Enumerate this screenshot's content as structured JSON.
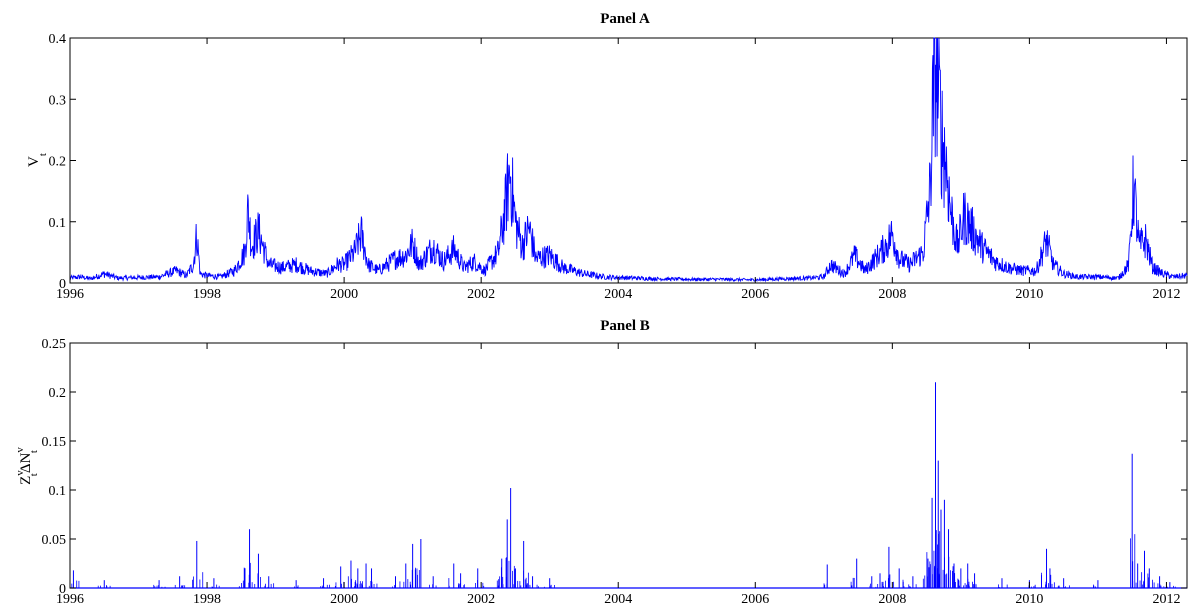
{
  "chart_data": [
    {
      "type": "line",
      "title": "Panel A",
      "ylabel": "V",
      "ylabel_subscript": "t",
      "xlim": [
        1996,
        2012.3
      ],
      "ylim": [
        0,
        0.4
      ],
      "xticks": [
        "1996",
        "1998",
        "2000",
        "2002",
        "2004",
        "2006",
        "2008",
        "2010",
        "2012"
      ],
      "yticks": [
        "0",
        "0.1",
        "0.2",
        "0.3",
        "0.4"
      ],
      "line_color": "#0000ff",
      "grid": false,
      "series": [
        {
          "x": [
            1996.0,
            1996.15,
            1996.3,
            1996.5,
            1996.7,
            1997.0,
            1997.3,
            1997.55,
            1997.7,
            1997.8,
            1997.85,
            1997.9,
            1998.0,
            1998.2,
            1998.4,
            1998.55,
            1998.6,
            1998.65,
            1998.75,
            1998.9,
            1999.1,
            1999.3,
            1999.5,
            1999.75,
            1999.9,
            2000.0,
            2000.15,
            2000.25,
            2000.35,
            2000.5,
            2000.75,
            2000.9,
            2001.0,
            2001.1,
            2001.3,
            2001.45,
            2001.6,
            2001.75,
            2001.9,
            2002.05,
            2002.25,
            2002.35,
            2002.42,
            2002.5,
            2002.6,
            2002.7,
            2002.8,
            2003.0,
            2003.2,
            2003.5,
            2003.8,
            2004.0,
            2004.5,
            2005.0,
            2005.5,
            2006.0,
            2006.4,
            2006.8,
            2007.0,
            2007.1,
            2007.3,
            2007.45,
            2007.6,
            2007.75,
            2007.9,
            2008.0,
            2008.1,
            2008.25,
            2008.45,
            2008.55,
            2008.62,
            2008.68,
            2008.72,
            2008.78,
            2008.85,
            2008.95,
            2009.05,
            2009.15,
            2009.3,
            2009.5,
            2009.7,
            2009.9,
            2010.1,
            2010.25,
            2010.35,
            2010.5,
            2010.7,
            2011.0,
            2011.3,
            2011.45,
            2011.52,
            2011.6,
            2011.7,
            2011.8,
            2011.95,
            2012.1,
            2012.3
          ],
          "y": [
            0.008,
            0.01,
            0.007,
            0.015,
            0.008,
            0.009,
            0.01,
            0.02,
            0.012,
            0.03,
            0.08,
            0.015,
            0.012,
            0.01,
            0.02,
            0.05,
            0.12,
            0.06,
            0.085,
            0.03,
            0.025,
            0.03,
            0.02,
            0.015,
            0.03,
            0.03,
            0.05,
            0.08,
            0.03,
            0.02,
            0.04,
            0.045,
            0.065,
            0.03,
            0.06,
            0.035,
            0.055,
            0.025,
            0.035,
            0.02,
            0.05,
            0.12,
            0.185,
            0.1,
            0.06,
            0.09,
            0.04,
            0.045,
            0.025,
            0.015,
            0.01,
            0.009,
            0.007,
            0.006,
            0.006,
            0.005,
            0.007,
            0.008,
            0.01,
            0.03,
            0.015,
            0.045,
            0.02,
            0.04,
            0.06,
            0.08,
            0.04,
            0.03,
            0.05,
            0.15,
            0.37,
            0.3,
            0.24,
            0.2,
            0.12,
            0.06,
            0.11,
            0.09,
            0.06,
            0.035,
            0.025,
            0.02,
            0.02,
            0.07,
            0.03,
            0.015,
            0.01,
            0.01,
            0.008,
            0.03,
            0.16,
            0.06,
            0.07,
            0.025,
            0.015,
            0.01,
            0.012
          ]
        }
      ]
    },
    {
      "type": "line",
      "title": "Panel B",
      "ylabel": "Z",
      "ylabel_subscript": "t",
      "ylabel_superscript": "v",
      "ylabel_mid": "ΔN",
      "ylabel_mid_subscript": "t",
      "ylabel_mid_superscript": "v",
      "xlim": [
        1996,
        2012.3
      ],
      "ylim": [
        0,
        0.25
      ],
      "xticks": [
        "1996",
        "1998",
        "2000",
        "2002",
        "2004",
        "2006",
        "2008",
        "2010",
        "2012"
      ],
      "yticks": [
        "0",
        "0.05",
        "0.1",
        "0.15",
        "0.2",
        "0.25"
      ],
      "line_color": "#0000ff",
      "grid": false,
      "spikes": [
        {
          "x": 1996.05,
          "y": 0.018
        },
        {
          "x": 1996.5,
          "y": 0.008
        },
        {
          "x": 1997.3,
          "y": 0.008
        },
        {
          "x": 1997.6,
          "y": 0.012
        },
        {
          "x": 1997.85,
          "y": 0.048
        },
        {
          "x": 1998.1,
          "y": 0.01
        },
        {
          "x": 1998.55,
          "y": 0.02
        },
        {
          "x": 1998.62,
          "y": 0.06
        },
        {
          "x": 1998.75,
          "y": 0.035
        },
        {
          "x": 1998.9,
          "y": 0.012
        },
        {
          "x": 1999.3,
          "y": 0.008
        },
        {
          "x": 1999.7,
          "y": 0.01
        },
        {
          "x": 1999.95,
          "y": 0.022
        },
        {
          "x": 2000.1,
          "y": 0.028
        },
        {
          "x": 2000.2,
          "y": 0.02
        },
        {
          "x": 2000.32,
          "y": 0.025
        },
        {
          "x": 2000.4,
          "y": 0.02
        },
        {
          "x": 2000.75,
          "y": 0.012
        },
        {
          "x": 2000.9,
          "y": 0.025
        },
        {
          "x": 2001.0,
          "y": 0.045
        },
        {
          "x": 2001.12,
          "y": 0.05
        },
        {
          "x": 2001.3,
          "y": 0.012
        },
        {
          "x": 2001.6,
          "y": 0.025
        },
        {
          "x": 2001.7,
          "y": 0.015
        },
        {
          "x": 2001.95,
          "y": 0.02
        },
        {
          "x": 2002.3,
          "y": 0.03
        },
        {
          "x": 2002.38,
          "y": 0.07
        },
        {
          "x": 2002.43,
          "y": 0.102
        },
        {
          "x": 2002.5,
          "y": 0.02
        },
        {
          "x": 2002.62,
          "y": 0.048
        },
        {
          "x": 2002.75,
          "y": 0.012
        },
        {
          "x": 2003.0,
          "y": 0.01
        },
        {
          "x": 2007.05,
          "y": 0.024
        },
        {
          "x": 2007.48,
          "y": 0.03
        },
        {
          "x": 2007.7,
          "y": 0.012
        },
        {
          "x": 2007.82,
          "y": 0.015
        },
        {
          "x": 2007.95,
          "y": 0.042
        },
        {
          "x": 2008.1,
          "y": 0.02
        },
        {
          "x": 2008.3,
          "y": 0.012
        },
        {
          "x": 2008.52,
          "y": 0.03
        },
        {
          "x": 2008.58,
          "y": 0.092
        },
        {
          "x": 2008.63,
          "y": 0.21
        },
        {
          "x": 2008.67,
          "y": 0.13
        },
        {
          "x": 2008.71,
          "y": 0.08
        },
        {
          "x": 2008.76,
          "y": 0.09
        },
        {
          "x": 2008.82,
          "y": 0.06
        },
        {
          "x": 2008.9,
          "y": 0.025
        },
        {
          "x": 2009.0,
          "y": 0.02
        },
        {
          "x": 2009.1,
          "y": 0.025
        },
        {
          "x": 2009.2,
          "y": 0.015
        },
        {
          "x": 2009.6,
          "y": 0.01
        },
        {
          "x": 2010.0,
          "y": 0.008
        },
        {
          "x": 2010.25,
          "y": 0.04
        },
        {
          "x": 2010.3,
          "y": 0.02
        },
        {
          "x": 2010.5,
          "y": 0.01
        },
        {
          "x": 2011.0,
          "y": 0.008
        },
        {
          "x": 2011.5,
          "y": 0.137
        },
        {
          "x": 2011.58,
          "y": 0.025
        },
        {
          "x": 2011.68,
          "y": 0.038
        },
        {
          "x": 2011.75,
          "y": 0.02
        },
        {
          "x": 2011.9,
          "y": 0.012
        },
        {
          "x": 2012.05,
          "y": 0.006
        }
      ]
    }
  ]
}
